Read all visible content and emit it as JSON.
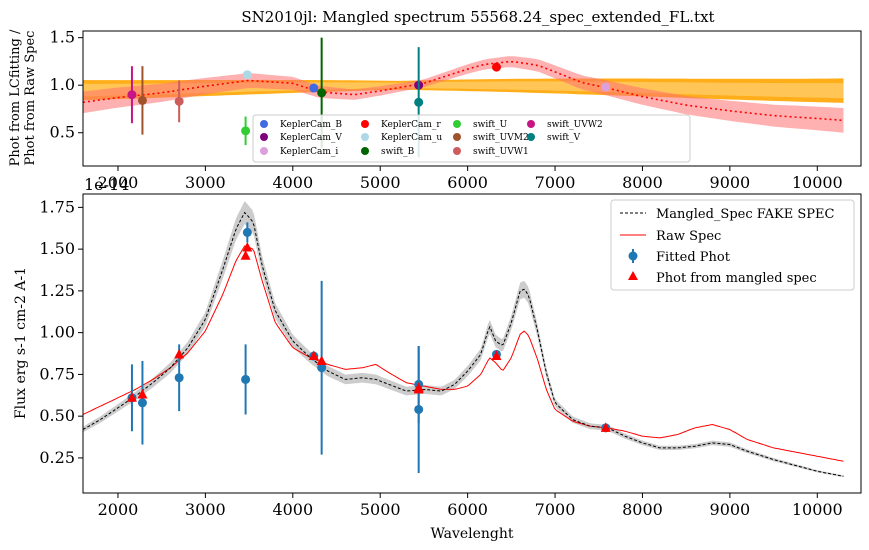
{
  "figure_title": "SN2010jl: Mangled spectrum 55568.24_spec_extended_FL.txt",
  "colors": {
    "phot_ratio_line": "#ff0000",
    "phot_ratio_band": "#ff6f6f",
    "fitting_band": "#ffa500",
    "fitting_band_light": "#ffcc66",
    "fake_spec": "#000000",
    "fake_spec_band": "#cccccc",
    "raw_spec": "#ff0000",
    "fitted_phot": "#1f77b4",
    "phot_mangled": "#ff0000"
  },
  "chart_data": [
    {
      "type": "scatter",
      "title": "SN2010jl: Mangled spectrum 55568.24_spec_extended_FL.txt",
      "xlabel": "",
      "ylabel": "Phot from LCfitting /\nPhot from Raw Spec",
      "xlim": [
        1600,
        10500
      ],
      "ylim": [
        0.15,
        1.57
      ],
      "xticks": [
        2000,
        3000,
        4000,
        5000,
        6000,
        7000,
        8000,
        9000,
        10000
      ],
      "xtick_labels": [
        "2000",
        "3000",
        "4000",
        "5000",
        "6000",
        "7000",
        "8000",
        "9000",
        "10000"
      ],
      "offset_text": "1e-14",
      "yticks": [
        0.5,
        1.0,
        1.5
      ],
      "ytick_labels": [
        "0.5",
        "1.0",
        "1.5"
      ],
      "grid": false,
      "legend_position": "bottom-center",
      "legend_columns": 5,
      "mangling_curve": {
        "x": [
          1600,
          2000,
          2500,
          3000,
          3500,
          4000,
          4300,
          4700,
          5000,
          5500,
          6000,
          6200,
          6500,
          6800,
          7000,
          7300,
          7600,
          8000,
          8500,
          9000,
          9500,
          10000,
          10300
        ],
        "y": [
          0.82,
          0.87,
          0.92,
          0.99,
          1.05,
          1.02,
          0.93,
          0.9,
          0.94,
          1.02,
          1.17,
          1.22,
          1.25,
          1.21,
          1.14,
          1.03,
          0.97,
          0.88,
          0.79,
          0.73,
          0.68,
          0.65,
          0.63
        ]
      },
      "series": [
        {
          "name": "KeplerCam_B",
          "color": "#4169e1",
          "points": [
            {
              "x": 4240,
              "y": 0.97,
              "err": 0
            }
          ]
        },
        {
          "name": "KeplerCam_V",
          "color": "#800080",
          "points": [
            {
              "x": 5440,
              "y": 1.0,
              "err": 0
            }
          ]
        },
        {
          "name": "KeplerCam_i",
          "color": "#dda0dd",
          "points": [
            {
              "x": 7580,
              "y": 0.98,
              "err": 0
            }
          ]
        },
        {
          "name": "KeplerCam_r",
          "color": "#ff0000",
          "points": [
            {
              "x": 6330,
              "y": 1.19,
              "err": 0
            }
          ]
        },
        {
          "name": "KeplerCam_u",
          "color": "#add8e6",
          "points": [
            {
              "x": 3480,
              "y": 1.11,
              "err": 0
            }
          ]
        },
        {
          "name": "swift_B",
          "color": "#006400",
          "points": [
            {
              "x": 4330,
              "y": 0.92,
              "err": 0.58
            }
          ]
        },
        {
          "name": "swift_U",
          "color": "#32cd32",
          "points": [
            {
              "x": 3460,
              "y": 0.52,
              "err": 0.15
            }
          ]
        },
        {
          "name": "swift_UVM2",
          "color": "#a0522d",
          "points": [
            {
              "x": 2280,
              "y": 0.84,
              "err": 0.36
            }
          ]
        },
        {
          "name": "swift_UVW1",
          "color": "#cd5c5c",
          "points": [
            {
              "x": 2700,
              "y": 0.83,
              "err": 0.22
            }
          ]
        },
        {
          "name": "swift_UVW2",
          "color": "#c71585",
          "points": [
            {
              "x": 2160,
              "y": 0.9,
              "err": 0.3
            }
          ]
        },
        {
          "name": "swift_V",
          "color": "#008080",
          "points": [
            {
              "x": 5440,
              "y": 0.82,
              "err": 0.58
            }
          ]
        }
      ]
    },
    {
      "type": "line",
      "title": "",
      "xlabel": "Wavelenght",
      "ylabel": "Flux erg s-1 cm-2 A-1",
      "xlim": [
        1600,
        10500
      ],
      "ylim": [
        0.04,
        1.83
      ],
      "xticks": [
        2000,
        3000,
        4000,
        5000,
        6000,
        7000,
        8000,
        9000,
        10000
      ],
      "xtick_labels": [
        "2000",
        "3000",
        "4000",
        "5000",
        "6000",
        "7000",
        "8000",
        "9000",
        "10000"
      ],
      "yticks": [
        0.25,
        0.5,
        0.75,
        1.0,
        1.25,
        1.5,
        1.75
      ],
      "ytick_labels": [
        "0.25",
        "0.50",
        "0.75",
        "1.00",
        "1.25",
        "1.50",
        "1.75"
      ],
      "grid": false,
      "legend_position": "top-right",
      "series": [
        {
          "name": "Mangled_Spec FAKE SPEC",
          "style": "dashed",
          "x": [
            1600,
            1800,
            2000,
            2200,
            2400,
            2600,
            2800,
            3000,
            3200,
            3350,
            3450,
            3550,
            3650,
            3800,
            4000,
            4200,
            4400,
            4600,
            4800,
            4950,
            5100,
            5300,
            5500,
            5700,
            5850,
            6000,
            6150,
            6250,
            6320,
            6400,
            6500,
            6600,
            6650,
            6700,
            6800,
            6900,
            7000,
            7200,
            7400,
            7600,
            7800,
            8000,
            8200,
            8400,
            8600,
            8800,
            9000,
            9200,
            9500,
            10000,
            10300
          ],
          "y": [
            0.42,
            0.48,
            0.55,
            0.62,
            0.7,
            0.79,
            0.91,
            1.08,
            1.38,
            1.62,
            1.72,
            1.66,
            1.4,
            1.13,
            0.95,
            0.85,
            0.77,
            0.72,
            0.73,
            0.72,
            0.69,
            0.65,
            0.66,
            0.65,
            0.69,
            0.77,
            0.87,
            1.04,
            0.95,
            0.92,
            1.06,
            1.25,
            1.26,
            1.22,
            1.01,
            0.76,
            0.58,
            0.48,
            0.44,
            0.43,
            0.38,
            0.34,
            0.31,
            0.31,
            0.32,
            0.34,
            0.33,
            0.29,
            0.24,
            0.17,
            0.14
          ]
        },
        {
          "name": "Raw Spec",
          "style": "solid",
          "x": [
            1600,
            1800,
            2000,
            2200,
            2400,
            2600,
            2800,
            3000,
            3200,
            3350,
            3450,
            3550,
            3650,
            3800,
            4000,
            4200,
            4400,
            4600,
            4800,
            4950,
            5100,
            5300,
            5500,
            5700,
            5850,
            6000,
            6150,
            6250,
            6320,
            6400,
            6500,
            6600,
            6650,
            6700,
            6800,
            6900,
            7000,
            7200,
            7400,
            7600,
            7800,
            8000,
            8200,
            8400,
            8600,
            8800,
            9000,
            9200,
            9500,
            10000,
            10300
          ],
          "y": [
            0.51,
            0.56,
            0.61,
            0.66,
            0.72,
            0.79,
            0.88,
            1.01,
            1.23,
            1.43,
            1.52,
            1.5,
            1.31,
            1.06,
            0.91,
            0.85,
            0.81,
            0.78,
            0.79,
            0.81,
            0.76,
            0.7,
            0.68,
            0.66,
            0.66,
            0.68,
            0.75,
            0.85,
            0.82,
            0.77,
            0.85,
            0.99,
            1.01,
            0.98,
            0.84,
            0.66,
            0.54,
            0.47,
            0.44,
            0.43,
            0.41,
            0.38,
            0.37,
            0.39,
            0.43,
            0.45,
            0.42,
            0.36,
            0.31,
            0.26,
            0.23
          ]
        },
        {
          "name": "Fitted Phot",
          "style": "errorbar",
          "points": [
            {
              "x": 2160,
              "y": 0.61,
              "err": 0.2
            },
            {
              "x": 2280,
              "y": 0.58,
              "err": 0.25
            },
            {
              "x": 2700,
              "y": 0.73,
              "err": 0.2
            },
            {
              "x": 3460,
              "y": 0.72,
              "err": 0.21
            },
            {
              "x": 3480,
              "y": 1.6,
              "err": 0.06
            },
            {
              "x": 4240,
              "y": 0.86,
              "err": 0
            },
            {
              "x": 4330,
              "y": 0.79,
              "err": 0.52
            },
            {
              "x": 5440,
              "y": 0.54,
              "err": 0.38
            },
            {
              "x": 5440,
              "y": 0.69,
              "err": 0.23
            },
            {
              "x": 6330,
              "y": 0.87,
              "err": 0
            },
            {
              "x": 7580,
              "y": 0.43,
              "err": 0
            }
          ]
        },
        {
          "name": "Phot from mangled spec",
          "style": "triangle",
          "points": [
            {
              "x": 2160,
              "y": 0.61
            },
            {
              "x": 2280,
              "y": 0.63
            },
            {
              "x": 2700,
              "y": 0.87
            },
            {
              "x": 3460,
              "y": 1.46
            },
            {
              "x": 3480,
              "y": 1.51
            },
            {
              "x": 4240,
              "y": 0.86
            },
            {
              "x": 4330,
              "y": 0.83
            },
            {
              "x": 5440,
              "y": 0.66
            },
            {
              "x": 5440,
              "y": 0.67
            },
            {
              "x": 6330,
              "y": 0.86
            },
            {
              "x": 7580,
              "y": 0.43
            }
          ]
        }
      ]
    }
  ]
}
